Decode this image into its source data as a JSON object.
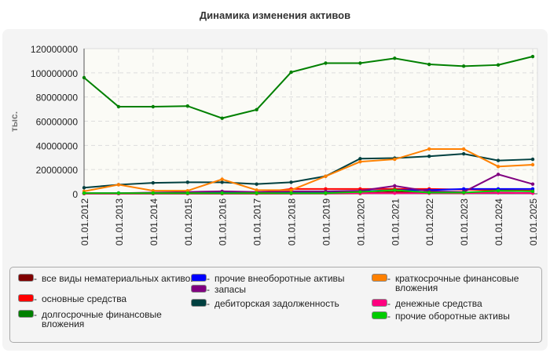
{
  "chart_data": {
    "type": "line",
    "title": "Динамика изменения активов",
    "ylabel": "тыс.",
    "ylim": [
      0,
      120000000
    ],
    "yticks": [
      0,
      20000000,
      40000000,
      60000000,
      80000000,
      100000000,
      120000000
    ],
    "grid": true,
    "legend_position": "bottom",
    "categories": [
      "01.01.2012",
      "01.01.2013",
      "01.01.2014",
      "01.01.2015",
      "01.01.2016",
      "01.01.2017",
      "01.01.2018",
      "01.01.2019",
      "01.01.2020",
      "01.01.2021",
      "01.01.2022",
      "01.01.2023",
      "01.01.2024",
      "01.01.2025"
    ],
    "series": [
      {
        "name": "все виды нематериальных активов",
        "color": "#800000",
        "values": [
          100000,
          100000,
          100000,
          100000,
          100000,
          100000,
          200000,
          200000,
          300000,
          1500000,
          500000,
          500000,
          1000000,
          500000
        ]
      },
      {
        "name": "основные средства",
        "color": "#ff0000",
        "values": [
          300000,
          300000,
          500000,
          500000,
          500000,
          800000,
          4000000,
          4000000,
          4000000,
          4000000,
          4000000,
          3500000,
          3000000,
          2500000
        ]
      },
      {
        "name": "долгосрочные финансовые вложения",
        "color": "#008000",
        "values": [
          96000000,
          72000000,
          72000000,
          72500000,
          62500000,
          69500000,
          100500000,
          108000000,
          108000000,
          112000000,
          107000000,
          105500000,
          106500000,
          113500000
        ]
      },
      {
        "name": "прочие внеоборотные активы",
        "color": "#0000ff",
        "values": [
          500000,
          500000,
          500000,
          1000000,
          1500000,
          1000000,
          1000000,
          1500000,
          2000000,
          3000000,
          3000000,
          4000000,
          4000000,
          4000000
        ]
      },
      {
        "name": "запасы",
        "color": "#800080",
        "values": [
          500000,
          500000,
          1000000,
          1500000,
          2000000,
          1500000,
          2000000,
          2000000,
          2500000,
          6500000,
          2000000,
          1500000,
          16000000,
          8000000
        ]
      },
      {
        "name": "дебиторская задолженность",
        "color": "#004040",
        "values": [
          5000000,
          7500000,
          9000000,
          9500000,
          9500000,
          8000000,
          9500000,
          14500000,
          29000000,
          29500000,
          31000000,
          33000000,
          27500000,
          28500000
        ]
      },
      {
        "name": "краткосрочные финансовые вложения",
        "color": "#ff8000",
        "values": [
          2000000,
          7500000,
          2500000,
          2500000,
          12000000,
          3000000,
          3000000,
          14500000,
          26500000,
          28500000,
          37000000,
          37000000,
          22500000,
          24000000
        ]
      },
      {
        "name": "денежные средства",
        "color": "#ff0080",
        "values": [
          100000,
          100000,
          200000,
          200000,
          200000,
          200000,
          200000,
          300000,
          500000,
          500000,
          500000,
          500000,
          800000,
          500000
        ]
      },
      {
        "name": "прочие оборотные активы",
        "color": "#00cc00",
        "values": [
          500000,
          500000,
          500000,
          500000,
          500000,
          500000,
          500000,
          500000,
          1500000,
          3000000,
          1000000,
          1000000,
          2500000,
          2000000
        ]
      }
    ]
  }
}
